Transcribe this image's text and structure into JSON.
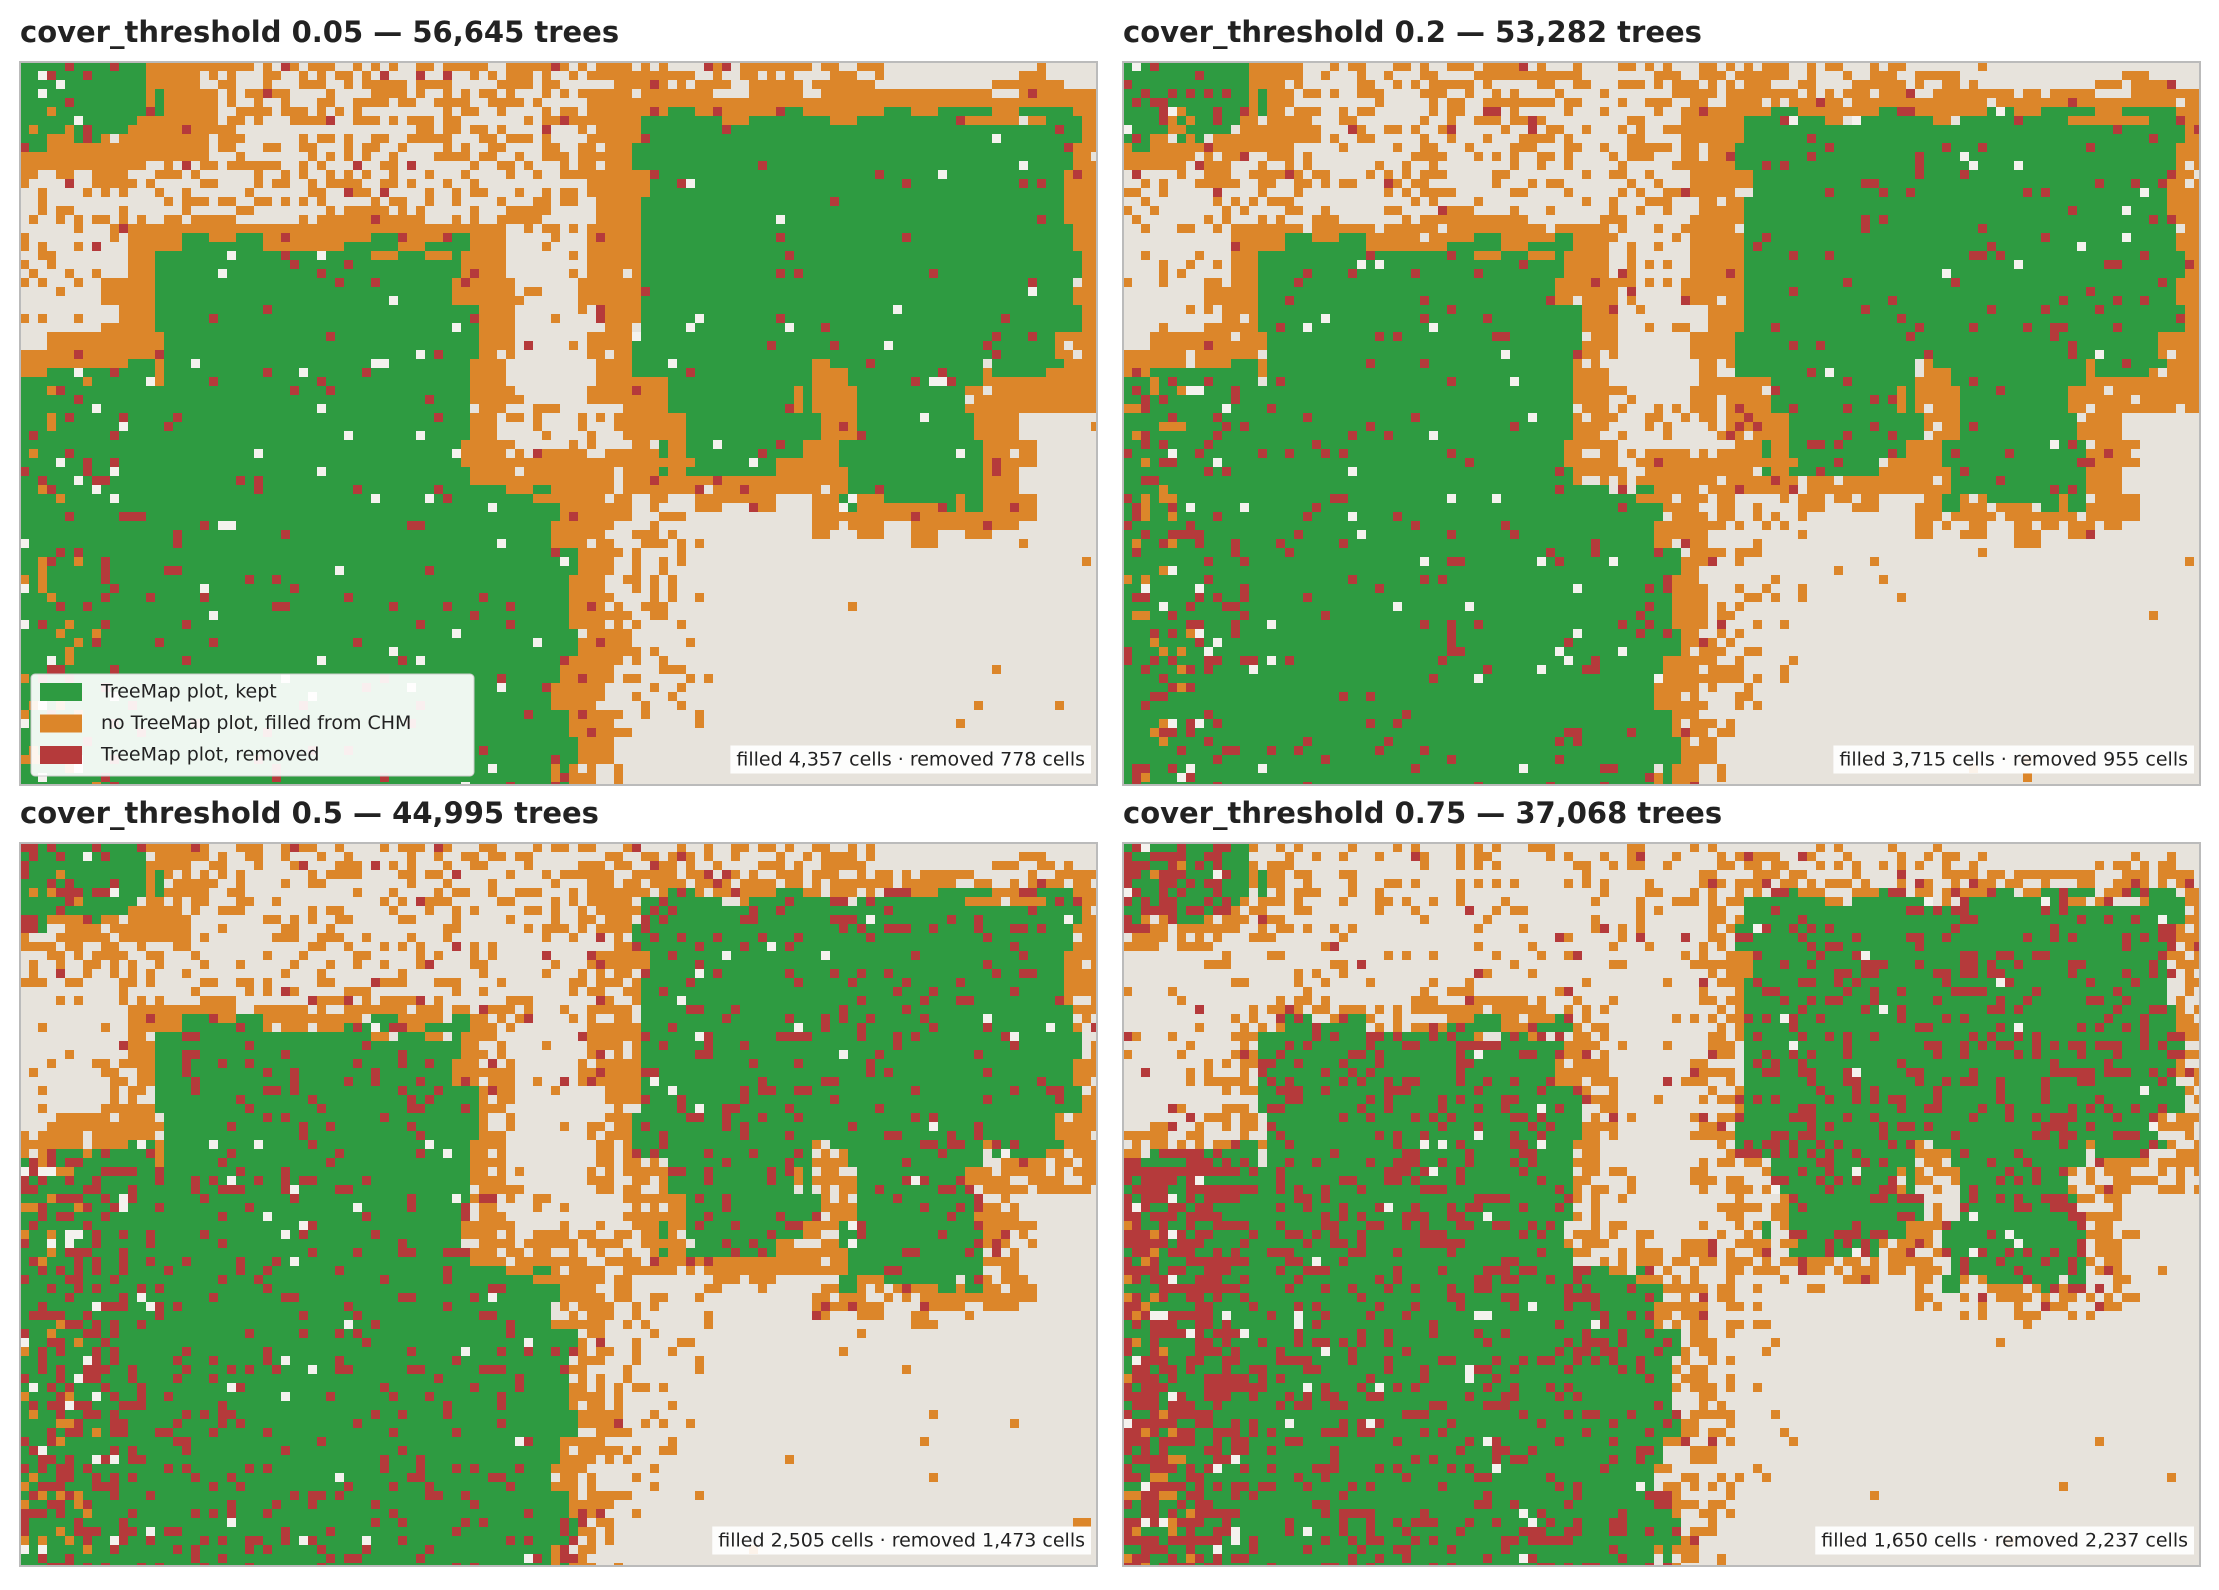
{
  "panels": [
    {
      "title": "cover_threshold 0.05 — 56,645 trees",
      "note": "filled 4,357 cells · removed 778 cells"
    },
    {
      "title": "cover_threshold 0.2 — 53,282 trees",
      "note": "filled 3,715 cells · removed 955 cells"
    },
    {
      "title": "cover_threshold 0.5 — 44,995 trees",
      "note": "filled 2,505 cells · removed 1,473 cells"
    },
    {
      "title": "cover_threshold 0.75 — 37,068 trees",
      "note": "filled 1,650 cells · removed 2,237 cells"
    }
  ],
  "legend": [
    {
      "label": "TreeMap plot, kept",
      "color": "#2e9b41"
    },
    {
      "label": "no TreeMap plot, filled from CHM",
      "color": "#dc862a"
    },
    {
      "label": "TreeMap plot, removed",
      "color": "#b53a3b"
    }
  ],
  "background_color": "#e7e3dc"
}
